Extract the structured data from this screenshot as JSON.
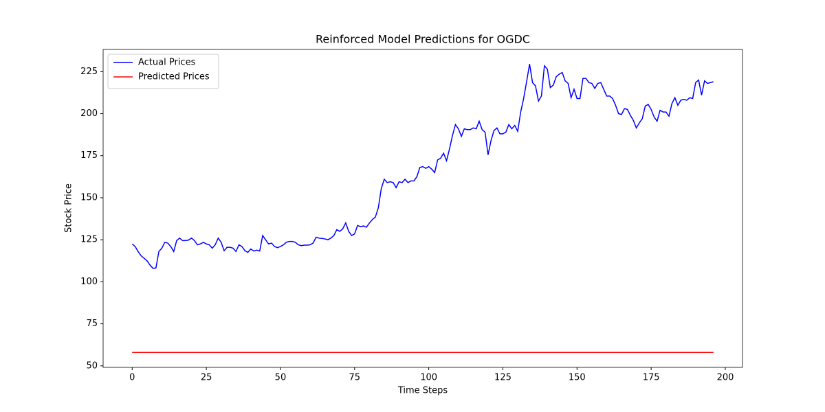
{
  "chart_data": {
    "type": "line",
    "title": "Reinforced Model Predictions for OGDC",
    "xlabel": "Time Steps",
    "ylabel": "Stock Price",
    "x": [
      0,
      1,
      2,
      3,
      4,
      5,
      6,
      7,
      8,
      9,
      10,
      11,
      12,
      13,
      14,
      15,
      16,
      17,
      18,
      19,
      20,
      21,
      22,
      23,
      24,
      25,
      26,
      27,
      28,
      29,
      30,
      31,
      32,
      33,
      34,
      35,
      36,
      37,
      38,
      39,
      40,
      41,
      42,
      43,
      44,
      45,
      46,
      47,
      48,
      49,
      50,
      51,
      52,
      53,
      54,
      55,
      56,
      57,
      58,
      59,
      60,
      61,
      62,
      63,
      64,
      65,
      66,
      67,
      68,
      69,
      70,
      71,
      72,
      73,
      74,
      75,
      76,
      77,
      78,
      79,
      80,
      81,
      82,
      83,
      84,
      85,
      86,
      87,
      88,
      89,
      90,
      91,
      92,
      93,
      94,
      95,
      96,
      97,
      98,
      99,
      100,
      101,
      102,
      103,
      104,
      105,
      106,
      107,
      108,
      109,
      110,
      111,
      112,
      113,
      114,
      115,
      116,
      117,
      118,
      119,
      120,
      121,
      122,
      123,
      124,
      125,
      126,
      127,
      128,
      129,
      130,
      131,
      132,
      133,
      134,
      135,
      136,
      137,
      138,
      139,
      140,
      141,
      142,
      143,
      144,
      145,
      146,
      147,
      148,
      149,
      150,
      151,
      152,
      153,
      154,
      155,
      156,
      157,
      158,
      159,
      160,
      161,
      162,
      163,
      164,
      165,
      166,
      167,
      168,
      169,
      170,
      171,
      172,
      173,
      174,
      175,
      176,
      177,
      178,
      179,
      180,
      181,
      182,
      183,
      184,
      185,
      186,
      187,
      188,
      189,
      190,
      191,
      192,
      193,
      194,
      195,
      196
    ],
    "series": [
      {
        "name": "Actual Prices",
        "color": "#0000ff",
        "values": [
          122.5,
          121,
          118,
          115.5,
          114,
          112.5,
          110,
          108,
          108.2,
          118,
          120,
          123.5,
          123,
          121,
          118,
          124.5,
          126,
          124.5,
          124.5,
          124.8,
          126,
          124.5,
          122,
          122.5,
          123.5,
          122.5,
          122,
          120,
          122,
          126,
          123.5,
          118.5,
          120.5,
          120.5,
          120,
          118,
          122,
          121,
          118.5,
          117.5,
          119.5,
          118.3,
          118.8,
          118.3,
          127.5,
          125,
          122.5,
          123,
          121,
          120.3,
          121,
          122,
          123.5,
          124,
          124,
          123.5,
          122,
          121.5,
          121.8,
          121.8,
          122,
          123,
          126.5,
          126,
          125.8,
          125.5,
          125,
          126,
          127.5,
          131,
          130,
          131.5,
          135,
          130,
          127.5,
          128.5,
          133.5,
          132.8,
          133.2,
          132.5,
          135,
          137,
          138.5,
          144,
          155.5,
          161,
          159,
          159.5,
          159,
          156,
          159.5,
          159,
          161,
          159,
          160,
          160,
          162.5,
          168,
          168.5,
          167.5,
          168.5,
          167,
          165,
          172.5,
          173.5,
          176.5,
          172,
          179,
          187,
          193.5,
          191,
          186.5,
          191,
          190.5,
          190.5,
          191.5,
          191,
          195.5,
          190.5,
          189,
          175.5,
          184,
          190,
          191.5,
          188,
          188,
          189,
          193.5,
          191,
          193,
          189.5,
          201,
          209,
          219,
          229.5,
          218.5,
          216.5,
          207.5,
          210.5,
          228.5,
          226.5,
          215.5,
          217,
          222,
          223.5,
          224.5,
          219.5,
          218,
          209.5,
          214.5,
          209,
          209,
          221,
          221,
          218.5,
          218,
          215,
          218,
          218.5,
          214.5,
          210.5,
          210.5,
          209,
          205,
          200,
          199.5,
          203,
          202.5,
          199,
          196,
          191.5,
          194.5,
          197,
          204.5,
          205.5,
          202.5,
          198,
          195.5,
          202,
          201,
          201,
          198.5,
          206,
          209.5,
          205,
          208,
          208.5,
          208,
          209.5,
          209,
          218.5,
          220,
          211,
          219.5,
          218,
          218.5,
          219
        ]
      },
      {
        "name": "Predicted Prices",
        "color": "#ff0000",
        "values": [
          58,
          58,
          58,
          58,
          58,
          58,
          58,
          58,
          58,
          58,
          58,
          58,
          58,
          58,
          58,
          58,
          58,
          58,
          58,
          58,
          58,
          58,
          58,
          58,
          58,
          58,
          58,
          58,
          58,
          58,
          58,
          58,
          58,
          58,
          58,
          58,
          58,
          58,
          58,
          58,
          58,
          58,
          58,
          58,
          58,
          58,
          58,
          58,
          58,
          58,
          58,
          58,
          58,
          58,
          58,
          58,
          58,
          58,
          58,
          58,
          58,
          58,
          58,
          58,
          58,
          58,
          58,
          58,
          58,
          58,
          58,
          58,
          58,
          58,
          58,
          58,
          58,
          58,
          58,
          58,
          58,
          58,
          58,
          58,
          58,
          58,
          58,
          58,
          58,
          58,
          58,
          58,
          58,
          58,
          58,
          58,
          58,
          58,
          58,
          58,
          58,
          58,
          58,
          58,
          58,
          58,
          58,
          58,
          58,
          58,
          58,
          58,
          58,
          58,
          58,
          58,
          58,
          58,
          58,
          58,
          58,
          58,
          58,
          58,
          58,
          58,
          58,
          58,
          58,
          58,
          58,
          58,
          58,
          58,
          58,
          58,
          58,
          58,
          58,
          58,
          58,
          58,
          58,
          58,
          58,
          58,
          58,
          58,
          58,
          58,
          58,
          58,
          58,
          58,
          58,
          58,
          58,
          58,
          58,
          58,
          58,
          58,
          58,
          58,
          58,
          58,
          58,
          58,
          58,
          58,
          58,
          58,
          58,
          58,
          58,
          58,
          58,
          58,
          58,
          58,
          58,
          58,
          58,
          58,
          58,
          58,
          58,
          58,
          58,
          58,
          58,
          58,
          58,
          58,
          58,
          58,
          58
        ]
      }
    ],
    "xlim": [
      -9.8,
      205.8
    ],
    "xticks": [
      0,
      25,
      50,
      75,
      100,
      125,
      150,
      175,
      200
    ],
    "ylim": [
      49.1,
      238.2
    ],
    "yticks": [
      50,
      75,
      100,
      125,
      150,
      175,
      200,
      225
    ],
    "grid": false,
    "legend": "upper-left"
  }
}
